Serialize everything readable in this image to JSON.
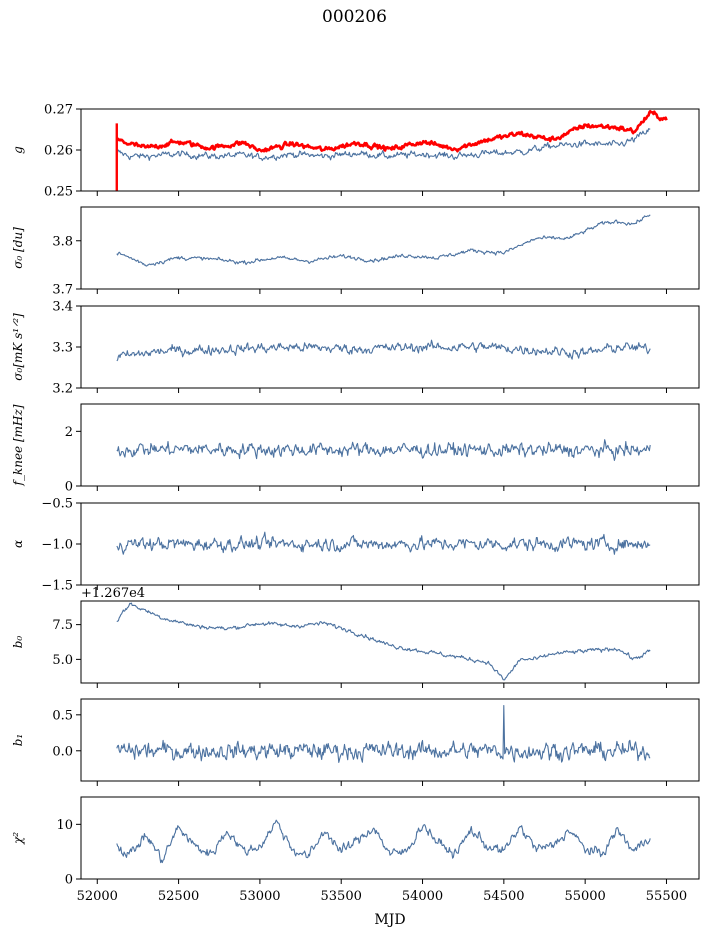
{
  "title": "000206",
  "xlabel": "MJD",
  "colors": {
    "series": "#4c72a0",
    "model": "#ff0000",
    "axis": "#000000"
  },
  "x_range": [
    51900,
    55700
  ],
  "x_ticks": [
    "52000",
    "52500",
    "53000",
    "53500",
    "54000",
    "54500",
    "55000",
    "55500"
  ],
  "chart_data": [
    {
      "id": "g",
      "type": "line",
      "ylabel": "g",
      "xlim": [
        51900,
        55700
      ],
      "ylim": [
        0.25,
        0.27
      ],
      "yticks": [
        "0.25",
        "0.26",
        "0.27"
      ],
      "series": [
        {
          "color": "#4c72a0",
          "x": [
            52120,
            52200,
            52300,
            52500,
            52700,
            52900,
            53000,
            53200,
            53400,
            53600,
            53800,
            54000,
            54200,
            54400,
            54600,
            54800,
            55000,
            55200,
            55300,
            55400
          ],
          "y": [
            0.2595,
            0.2585,
            0.2585,
            0.259,
            0.2585,
            0.2587,
            0.2582,
            0.259,
            0.2585,
            0.2592,
            0.2585,
            0.259,
            0.2585,
            0.2592,
            0.2595,
            0.261,
            0.2615,
            0.2612,
            0.2625,
            0.265
          ],
          "noise": 0.0008
        },
        {
          "color": "#ff0000",
          "x": [
            52120,
            52200,
            52300,
            52500,
            52700,
            52900,
            53000,
            53200,
            53400,
            53600,
            53800,
            54000,
            54200,
            54400,
            54600,
            54800,
            55000,
            55200,
            55300,
            55400,
            55500
          ],
          "y": [
            0.2625,
            0.2615,
            0.2605,
            0.262,
            0.2605,
            0.2618,
            0.2598,
            0.2615,
            0.26,
            0.2618,
            0.2602,
            0.262,
            0.2603,
            0.2625,
            0.264,
            0.2625,
            0.266,
            0.2655,
            0.2645,
            0.269,
            0.2675
          ],
          "noise": 0.0006
        }
      ]
    },
    {
      "id": "sigma",
      "type": "line",
      "ylabel": "σ₀ [du]",
      "xlim": [
        51900,
        55700
      ],
      "ylim": [
        3.7,
        3.87
      ],
      "yticks": [
        "3.7",
        "3.8"
      ],
      "series": [
        {
          "color": "#4c72a0",
          "x": [
            52120,
            52200,
            52300,
            52500,
            52700,
            52900,
            53100,
            53300,
            53500,
            53700,
            53900,
            54100,
            54300,
            54500,
            54700,
            54900,
            55000,
            55100,
            55200,
            55300,
            55400
          ],
          "y": [
            3.775,
            3.765,
            3.75,
            3.765,
            3.762,
            3.755,
            3.765,
            3.758,
            3.768,
            3.76,
            3.77,
            3.765,
            3.78,
            3.775,
            3.805,
            3.805,
            3.82,
            3.835,
            3.84,
            3.835,
            3.855
          ],
          "noise": 0.004
        }
      ]
    },
    {
      "id": "sigma-mk",
      "type": "line",
      "ylabel": "σ₀[mK s¹ᐟ²]",
      "xlim": [
        51900,
        55700
      ],
      "ylim": [
        3.2,
        3.4
      ],
      "yticks": [
        "3.2",
        "3.3",
        "3.4"
      ],
      "series": [
        {
          "color": "#4c72a0",
          "x": [
            52120,
            52400,
            52800,
            53200,
            53600,
            54000,
            54400,
            54800,
            55000,
            55200,
            55400
          ],
          "y": [
            3.275,
            3.29,
            3.295,
            3.3,
            3.295,
            3.3,
            3.3,
            3.29,
            3.285,
            3.3,
            3.295
          ],
          "noise": 0.012
        }
      ]
    },
    {
      "id": "fknee",
      "type": "line",
      "ylabel": "f_knee [mHz]",
      "xlim": [
        51900,
        55700
      ],
      "ylim": [
        0,
        3
      ],
      "yticks": [
        "0",
        "2"
      ],
      "series": [
        {
          "color": "#4c72a0",
          "x": [
            52120,
            55400
          ],
          "y": [
            1.35,
            1.3
          ],
          "noise": 0.25
        }
      ]
    },
    {
      "id": "alpha",
      "type": "line",
      "ylabel": "α",
      "xlim": [
        51900,
        55700
      ],
      "ylim": [
        -1.5,
        -0.5
      ],
      "yticks": [
        "−1.5",
        "−1.0",
        "−0.5"
      ],
      "series": [
        {
          "color": "#4c72a0",
          "x": [
            52120,
            55400
          ],
          "y": [
            -1.0,
            -1.0
          ],
          "noise": 0.08
        }
      ]
    },
    {
      "id": "b0",
      "type": "line",
      "ylabel": "b₀",
      "offset_label": "+1.267e4",
      "xlim": [
        51900,
        55700
      ],
      "ylim": [
        3.3,
        9.2
      ],
      "yticks": [
        "5.0",
        "7.5"
      ],
      "series": [
        {
          "color": "#4c72a0",
          "x": [
            52120,
            52200,
            52400,
            52600,
            52800,
            53000,
            53200,
            53400,
            53600,
            53800,
            54000,
            54200,
            54400,
            54450,
            54500,
            54550,
            54600,
            54700,
            54800,
            55000,
            55200,
            55300,
            55400
          ],
          "y": [
            7.8,
            9.0,
            8.0,
            7.4,
            7.2,
            7.6,
            7.4,
            7.6,
            6.9,
            6.0,
            5.6,
            5.2,
            4.8,
            4.2,
            3.5,
            4.2,
            5.0,
            5.0,
            5.4,
            5.6,
            5.8,
            5.0,
            5.6
          ],
          "noise": 0.15
        }
      ]
    },
    {
      "id": "b1",
      "type": "line",
      "ylabel": "b₁",
      "xlim": [
        51900,
        55700
      ],
      "ylim": [
        -0.42,
        0.72
      ],
      "yticks": [
        "0.0",
        "0.5"
      ],
      "series": [
        {
          "color": "#4c72a0",
          "x": [
            52120,
            55400
          ],
          "y": [
            0.0,
            0.0
          ],
          "noise": 0.12,
          "spikes": [
            [
              54500,
              0.63
            ]
          ]
        }
      ]
    },
    {
      "id": "chi2",
      "type": "line",
      "ylabel": "χ²",
      "xlim": [
        51900,
        55700
      ],
      "ylim": [
        0,
        15
      ],
      "yticks": [
        "0",
        "10"
      ],
      "series": [
        {
          "color": "#4c72a0",
          "x": [
            52120,
            52200,
            52300,
            52400,
            52500,
            52600,
            52700,
            52800,
            52900,
            53000,
            53100,
            53200,
            53300,
            53400,
            53500,
            53600,
            53700,
            53800,
            53900,
            54000,
            54100,
            54200,
            54300,
            54400,
            54500,
            54600,
            54700,
            54800,
            54900,
            55000,
            55100,
            55200,
            55300,
            55400
          ],
          "y": [
            6.0,
            4.5,
            8.0,
            3.5,
            9.5,
            6.0,
            4.5,
            9.0,
            5.0,
            6.0,
            10.5,
            5.5,
            4.0,
            9.0,
            5.0,
            7.0,
            9.5,
            4.5,
            5.0,
            10.0,
            6.5,
            4.5,
            9.0,
            6.0,
            5.0,
            9.5,
            5.5,
            6.0,
            9.0,
            5.5,
            4.5,
            9.0,
            5.0,
            8.0
          ],
          "noise": 0.9
        }
      ]
    }
  ]
}
